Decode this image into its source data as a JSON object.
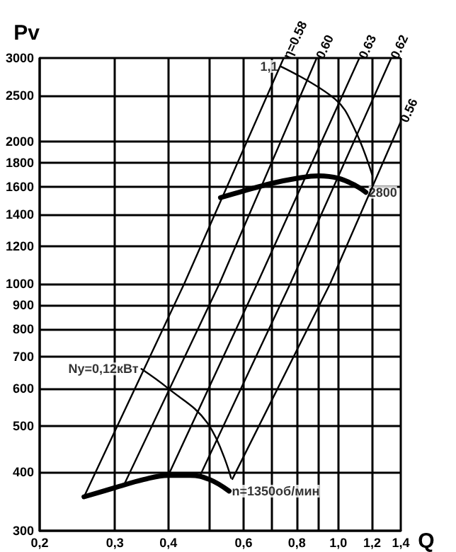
{
  "chart_data": {
    "type": "line",
    "xlabel": "Q",
    "ylabel": "Pv",
    "log": "xy",
    "grid": true,
    "marker": "none",
    "line_style": "solid",
    "xlim": [
      0.2,
      1.4
    ],
    "ylim": [
      300,
      3000
    ],
    "xticks": [
      {
        "value": 0.2,
        "label": "0,2"
      },
      {
        "value": 0.3,
        "label": "0,3"
      },
      {
        "value": 0.4,
        "label": "0,4"
      },
      {
        "value": 0.5,
        "label": null
      },
      {
        "value": 0.6,
        "label": "0,6"
      },
      {
        "value": 0.7,
        "label": null
      },
      {
        "value": 0.8,
        "label": "0,8"
      },
      {
        "value": 0.9,
        "label": null
      },
      {
        "value": 1.0,
        "label": "1,0"
      },
      {
        "value": 1.2,
        "label": "1,2"
      },
      {
        "value": 1.4,
        "label": "1,4"
      }
    ],
    "yticks": [
      300,
      400,
      500,
      600,
      700,
      800,
      900,
      1000,
      1200,
      1400,
      1600,
      1800,
      2000,
      2500,
      3000
    ],
    "series": [
      {
        "color": "#000000",
        "x": [
          0.53,
          0.6,
          0.7,
          0.8,
          0.9,
          1.0,
          1.1,
          1.16
        ],
        "values": [
          1520,
          1570,
          1630,
          1670,
          1690,
          1670,
          1610,
          1560
        ]
      },
      {
        "color": "#000000",
        "x": [
          0.254,
          0.3,
          0.35,
          0.4,
          0.45,
          0.5,
          0.555
        ],
        "values": [
          354,
          370,
          385,
          393,
          393,
          385,
          364
        ]
      },
      {
        "name": "η=0.58",
        "color": "#000000",
        "x": [
          0.254,
          0.436,
          0.745
        ],
        "values": [
          354,
          1000,
          3000
        ]
      },
      {
        "name": "0.60",
        "color": "#000000",
        "x": [
          0.315,
          0.527,
          0.89
        ],
        "values": [
          375,
          1000,
          3000
        ]
      },
      {
        "name": "0.63",
        "color": "#000000",
        "x": [
          0.4,
          0.646,
          1.12
        ],
        "values": [
          393,
          1000,
          3000
        ]
      },
      {
        "name": "0.62",
        "color": "#000000",
        "x": [
          0.475,
          0.772,
          1.33
        ],
        "values": [
          393,
          1000,
          3000
        ]
      },
      {
        "name": "0.56",
        "color": "#000000",
        "x": [
          0.565,
          0.957,
          1.4
        ],
        "values": [
          386,
          1000,
          2200
        ]
      },
      {
        "color": "#000000",
        "x": [
          0.733,
          0.983,
          1.088,
          1.2
        ],
        "values": [
          2880,
          2455,
          2137,
          1700
        ]
      },
      {
        "color": "#000000",
        "x": [
          0.346,
          0.398,
          0.494,
          0.561
        ],
        "values": [
          660,
          602,
          507,
          388
        ]
      }
    ],
    "annotations": [
      {
        "text": "1,1",
        "x": 0.733,
        "y": 2880
      },
      {
        "text": "Ny=0,12кВт",
        "x": 0.346,
        "y": 660
      },
      {
        "text": "2800",
        "x": 1.16,
        "y": 1560
      },
      {
        "text": "n=1350об/мин",
        "x": 0.555,
        "y": 364
      }
    ]
  }
}
